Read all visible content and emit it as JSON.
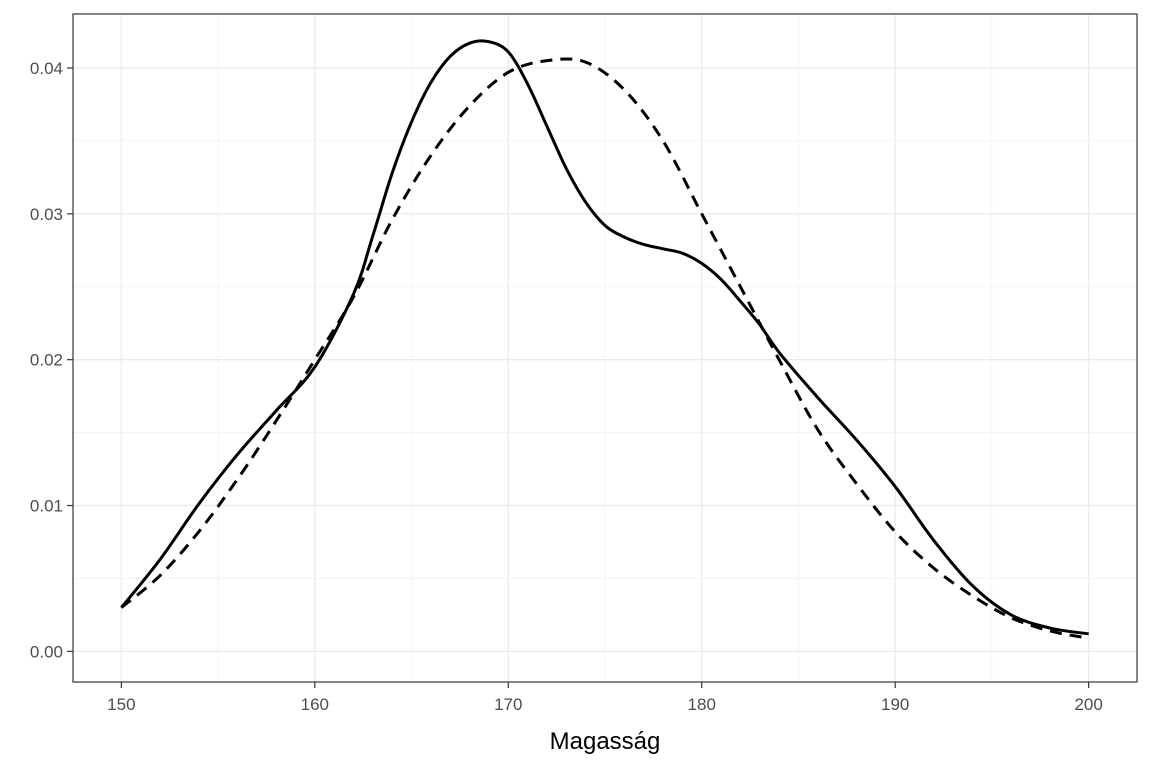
{
  "chart_data": {
    "type": "line",
    "title": "",
    "xlabel": "Magasság",
    "ylabel": "",
    "xlim": [
      147.5,
      202.5
    ],
    "ylim": [
      -0.0021,
      0.0437
    ],
    "x_ticks": [
      150,
      160,
      170,
      180,
      190,
      200
    ],
    "x_tick_labels": [
      "150",
      "160",
      "170",
      "180",
      "190",
      "200"
    ],
    "y_ticks": [
      0.0,
      0.01,
      0.02,
      0.03,
      0.04
    ],
    "y_tick_labels": [
      "0.00",
      "0.01",
      "0.02",
      "0.03",
      "0.04"
    ],
    "grid": true,
    "legend": "none",
    "series": [
      {
        "style": "solid",
        "color": "#000000",
        "x": [
          150,
          152,
          154,
          156,
          158,
          160,
          162,
          163,
          164,
          165,
          166,
          167,
          168,
          169,
          170,
          171,
          172,
          173,
          174,
          175,
          176,
          177,
          178,
          179,
          180,
          181,
          182,
          183,
          184,
          186,
          188,
          190,
          192,
          194,
          196,
          198,
          200
        ],
        "y": [
          0.003,
          0.0063,
          0.0101,
          0.0135,
          0.0165,
          0.0195,
          0.0245,
          0.0285,
          0.0328,
          0.0363,
          0.039,
          0.0408,
          0.0417,
          0.0418,
          0.0411,
          0.0389,
          0.036,
          0.0331,
          0.0308,
          0.0292,
          0.0284,
          0.0279,
          0.0276,
          0.0273,
          0.0266,
          0.0255,
          0.024,
          0.0224,
          0.0205,
          0.0174,
          0.0145,
          0.0113,
          0.0076,
          0.0045,
          0.0025,
          0.0016,
          0.0012
        ]
      },
      {
        "style": "dashed",
        "color": "#000000",
        "x": [
          150,
          152,
          154,
          156,
          158,
          160,
          162,
          164,
          166,
          168,
          170,
          172,
          174,
          176,
          178,
          180,
          182,
          184,
          186,
          188,
          190,
          192,
          194,
          196,
          198,
          200
        ],
        "y": [
          0.003,
          0.0052,
          0.0082,
          0.0118,
          0.0158,
          0.02,
          0.0243,
          0.0296,
          0.034,
          0.0374,
          0.0397,
          0.0405,
          0.0404,
          0.0385,
          0.035,
          0.03,
          0.025,
          0.02,
          0.0152,
          0.0115,
          0.0082,
          0.0057,
          0.0038,
          0.0023,
          0.0014,
          0.0009
        ]
      }
    ]
  }
}
